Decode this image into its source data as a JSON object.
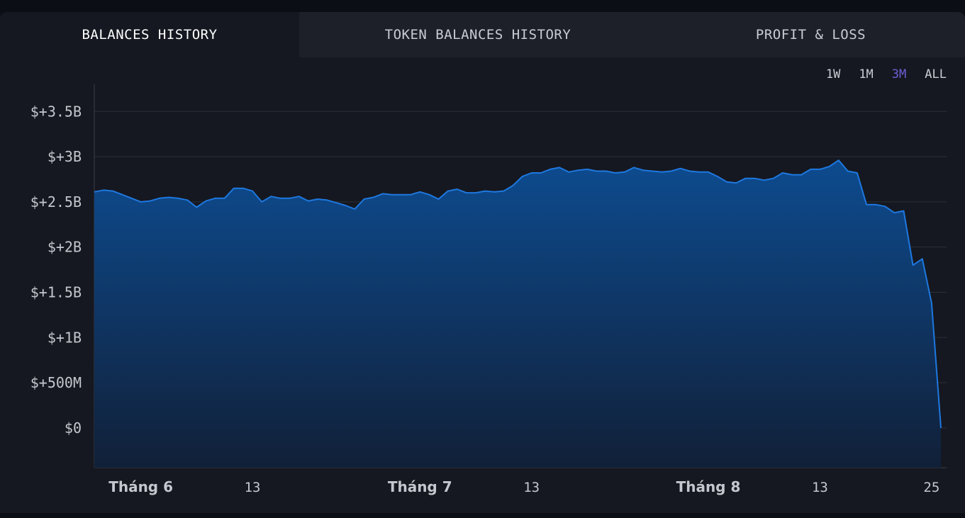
{
  "tabs": [
    {
      "label": "BALANCES HISTORY",
      "active": true
    },
    {
      "label": "TOKEN BALANCES HISTORY",
      "active": false
    },
    {
      "label": "PROFIT & LOSS",
      "active": false
    }
  ],
  "ranges": [
    {
      "label": "1W",
      "active": false
    },
    {
      "label": "1M",
      "active": false
    },
    {
      "label": "3M",
      "active": true
    },
    {
      "label": "ALL",
      "active": false
    }
  ],
  "colors": {
    "accent_range": "#6f5fd6",
    "line": "#1e78e0",
    "fill_top": "#0d4b8f",
    "fill_bottom": "#112038",
    "grid": "#2b2f38"
  },
  "chart_data": {
    "type": "area",
    "title": "",
    "xlabel": "",
    "ylabel": "",
    "grid": true,
    "ylim": [
      -0.44,
      3.8
    ],
    "yticks": [
      {
        "value": 0,
        "label": "$0"
      },
      {
        "value": 0.5,
        "label": "$+500M"
      },
      {
        "value": 1,
        "label": "$+1B"
      },
      {
        "value": 1.5,
        "label": "$+1.5B"
      },
      {
        "value": 2,
        "label": "$+2B"
      },
      {
        "value": 2.5,
        "label": "$+2.5B"
      },
      {
        "value": 3,
        "label": "$+3B"
      },
      {
        "value": 3.5,
        "label": "$+3.5B"
      }
    ],
    "xticks": [
      {
        "day": 5,
        "label": "Tháng 6",
        "month": true
      },
      {
        "day": 17,
        "label": "13",
        "month": false
      },
      {
        "day": 35,
        "label": "Tháng 7",
        "month": true
      },
      {
        "day": 47,
        "label": "13",
        "month": false
      },
      {
        "day": 66,
        "label": "Tháng 8",
        "month": true
      },
      {
        "day": 78,
        "label": "13",
        "month": false
      },
      {
        "day": 90,
        "label": "25",
        "month": false
      }
    ],
    "x_range": [
      0,
      91
    ],
    "unit": "billions USD",
    "series": [
      {
        "values": [
          2.61,
          2.63,
          2.62,
          2.58,
          2.54,
          2.5,
          2.51,
          2.54,
          2.55,
          2.54,
          2.52,
          2.44,
          2.51,
          2.54,
          2.54,
          2.65,
          2.65,
          2.62,
          2.5,
          2.56,
          2.54,
          2.54,
          2.56,
          2.51,
          2.53,
          2.52,
          2.49,
          2.46,
          2.42,
          2.53,
          2.55,
          2.59,
          2.58,
          2.58,
          2.58,
          2.61,
          2.58,
          2.53,
          2.62,
          2.64,
          2.6,
          2.6,
          2.62,
          2.61,
          2.62,
          2.68,
          2.78,
          2.82,
          2.82,
          2.86,
          2.88,
          2.83,
          2.85,
          2.86,
          2.84,
          2.84,
          2.82,
          2.83,
          2.88,
          2.85,
          2.84,
          2.83,
          2.84,
          2.87,
          2.84,
          2.83,
          2.83,
          2.78,
          2.72,
          2.71,
          2.76,
          2.76,
          2.74,
          2.76,
          2.82,
          2.8,
          2.8,
          2.86,
          2.86,
          2.89,
          2.96,
          2.84,
          2.82,
          2.47,
          2.47,
          2.45,
          2.38,
          2.4,
          1.8,
          1.87,
          1.38,
          0.0
        ]
      }
    ]
  }
}
